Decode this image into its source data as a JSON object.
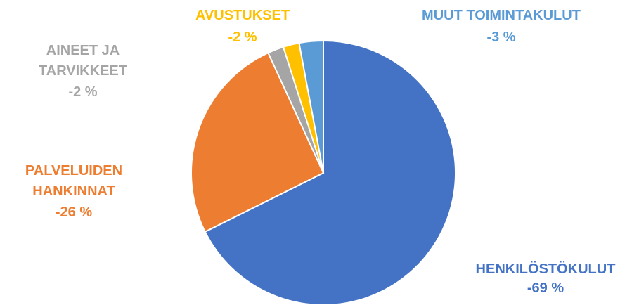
{
  "chart_data": {
    "type": "pie",
    "categories": [
      "HENKILÖSTÖKULUT",
      "PALVELUIDEN HANKINNAT",
      "AINEET JA TARVIKKEET",
      "AVUSTUKSET",
      "MUUT TOIMINTAKULUT"
    ],
    "values": [
      -69,
      -26,
      -2,
      -2,
      -3
    ],
    "value_labels": [
      "-69 %",
      "-26 %",
      "-2 %",
      "-2 %",
      "-3 %"
    ],
    "colors": [
      "#4472c4",
      "#ed7d31",
      "#a5a5a5",
      "#ffc000",
      "#5b9bd5"
    ]
  }
}
